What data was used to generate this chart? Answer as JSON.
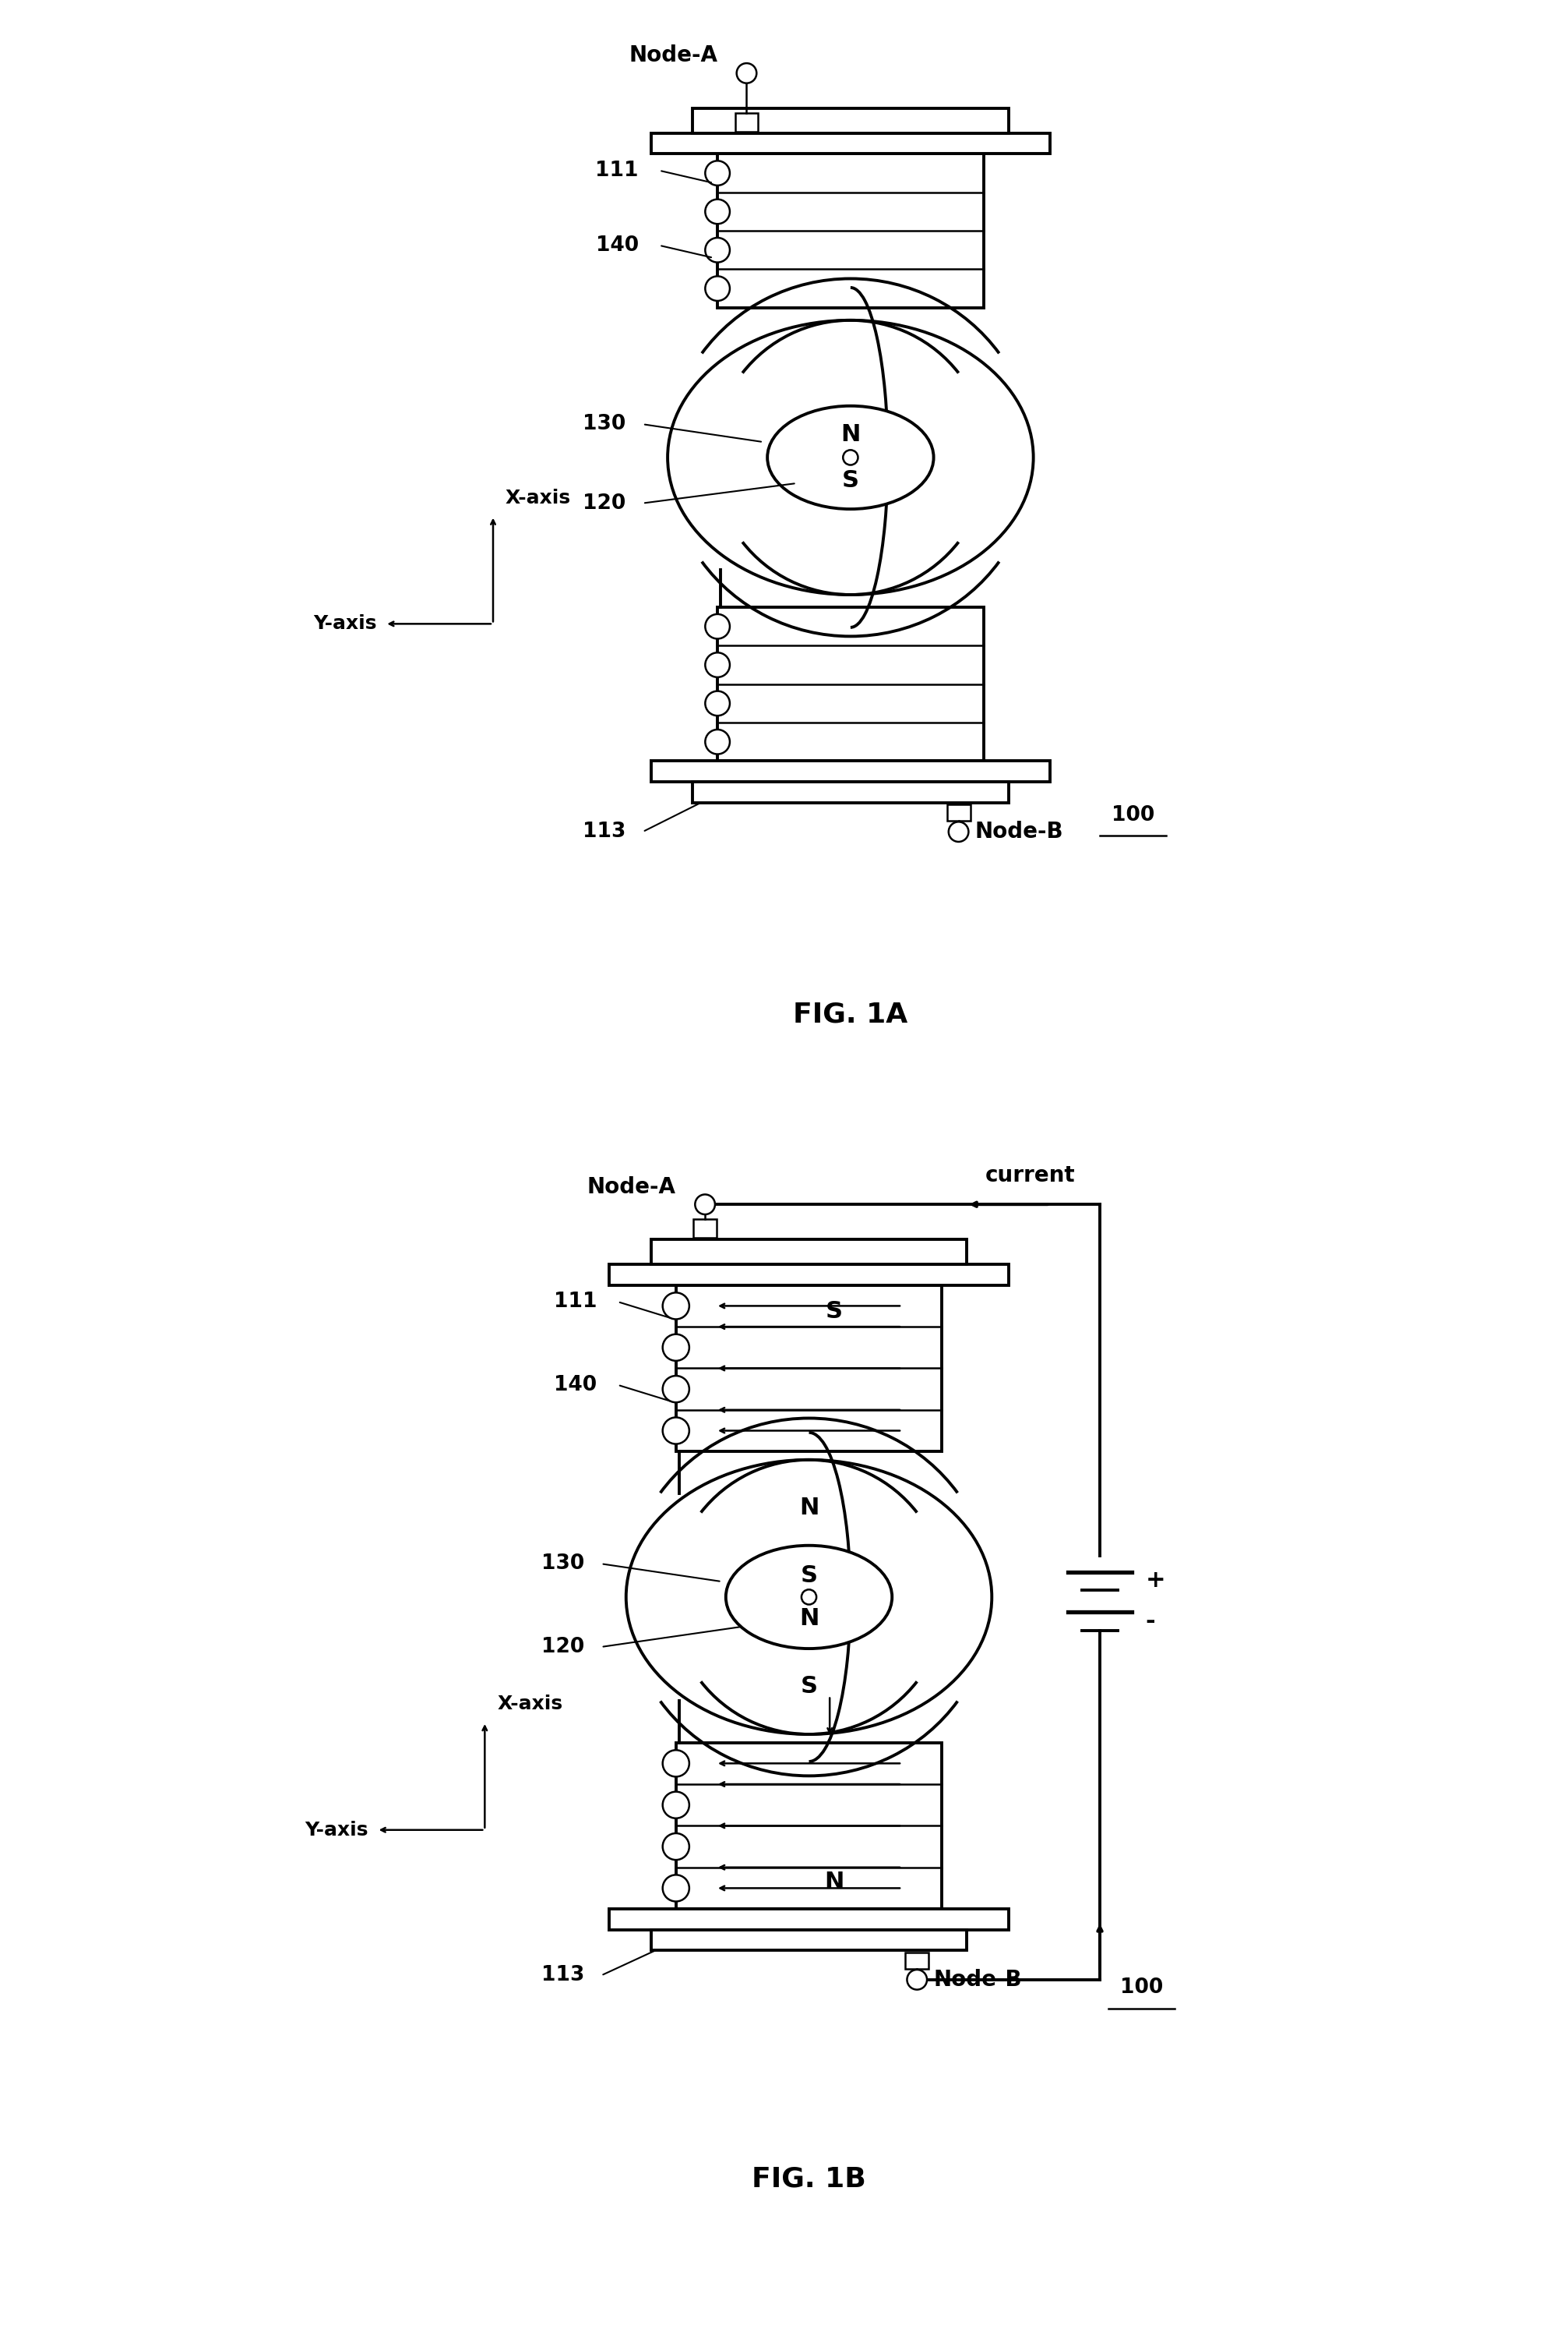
{
  "bg_color": "#ffffff",
  "line_color": "#000000",
  "fig1a": {
    "title": "FIG. 1A",
    "ref_num": "100",
    "node_a": "Node-A",
    "node_b": "Node-B",
    "label_111": "111",
    "label_140": "140",
    "label_130": "130",
    "label_120": "120",
    "label_113": "113",
    "x_axis": "X-axis",
    "y_axis": "Y-axis",
    "pole_top": "N",
    "pole_bot": "S"
  },
  "fig1b": {
    "title": "FIG. 1B",
    "ref_num": "100",
    "node_a": "Node-A",
    "node_b": "Node-B",
    "label_111": "111",
    "label_140": "140",
    "label_130": "130",
    "label_120": "120",
    "label_113": "113",
    "x_axis": "X-axis",
    "y_axis": "Y-axis",
    "current": "current",
    "plus": "+",
    "minus": "-",
    "top_coil_pole": "S",
    "bot_coil_pole": "N",
    "core_poles": [
      "N",
      "S",
      "N",
      "S"
    ]
  },
  "lw": 2.8,
  "lw2": 1.8,
  "fs_label": 20,
  "fs_num": 19,
  "fs_title": 26,
  "fs_axis": 18,
  "fs_pole": 22
}
